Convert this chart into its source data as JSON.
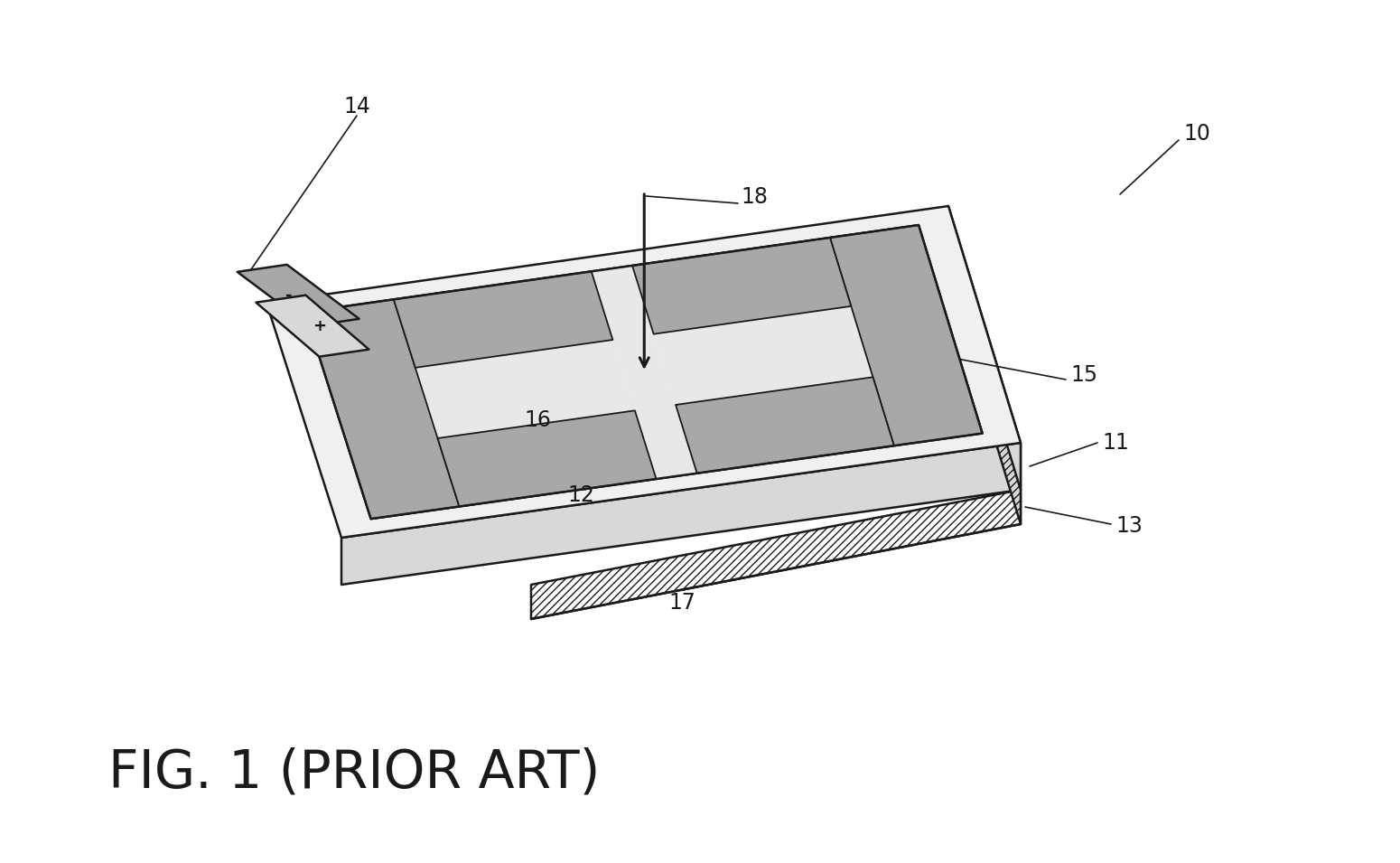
{
  "bg_color": "#ffffff",
  "line_color": "#1a1a1a",
  "title": "FIG. 1 (PRIOR ART)",
  "title_fontsize": 42,
  "lw": 1.8,
  "lw_thin": 1.2,
  "gray_light": "#f0f0f0",
  "gray_mid": "#d8d8d8",
  "gray_dark": "#b0b0b0",
  "gray_electrode": "#a8a8a8",
  "white": "#ffffff"
}
